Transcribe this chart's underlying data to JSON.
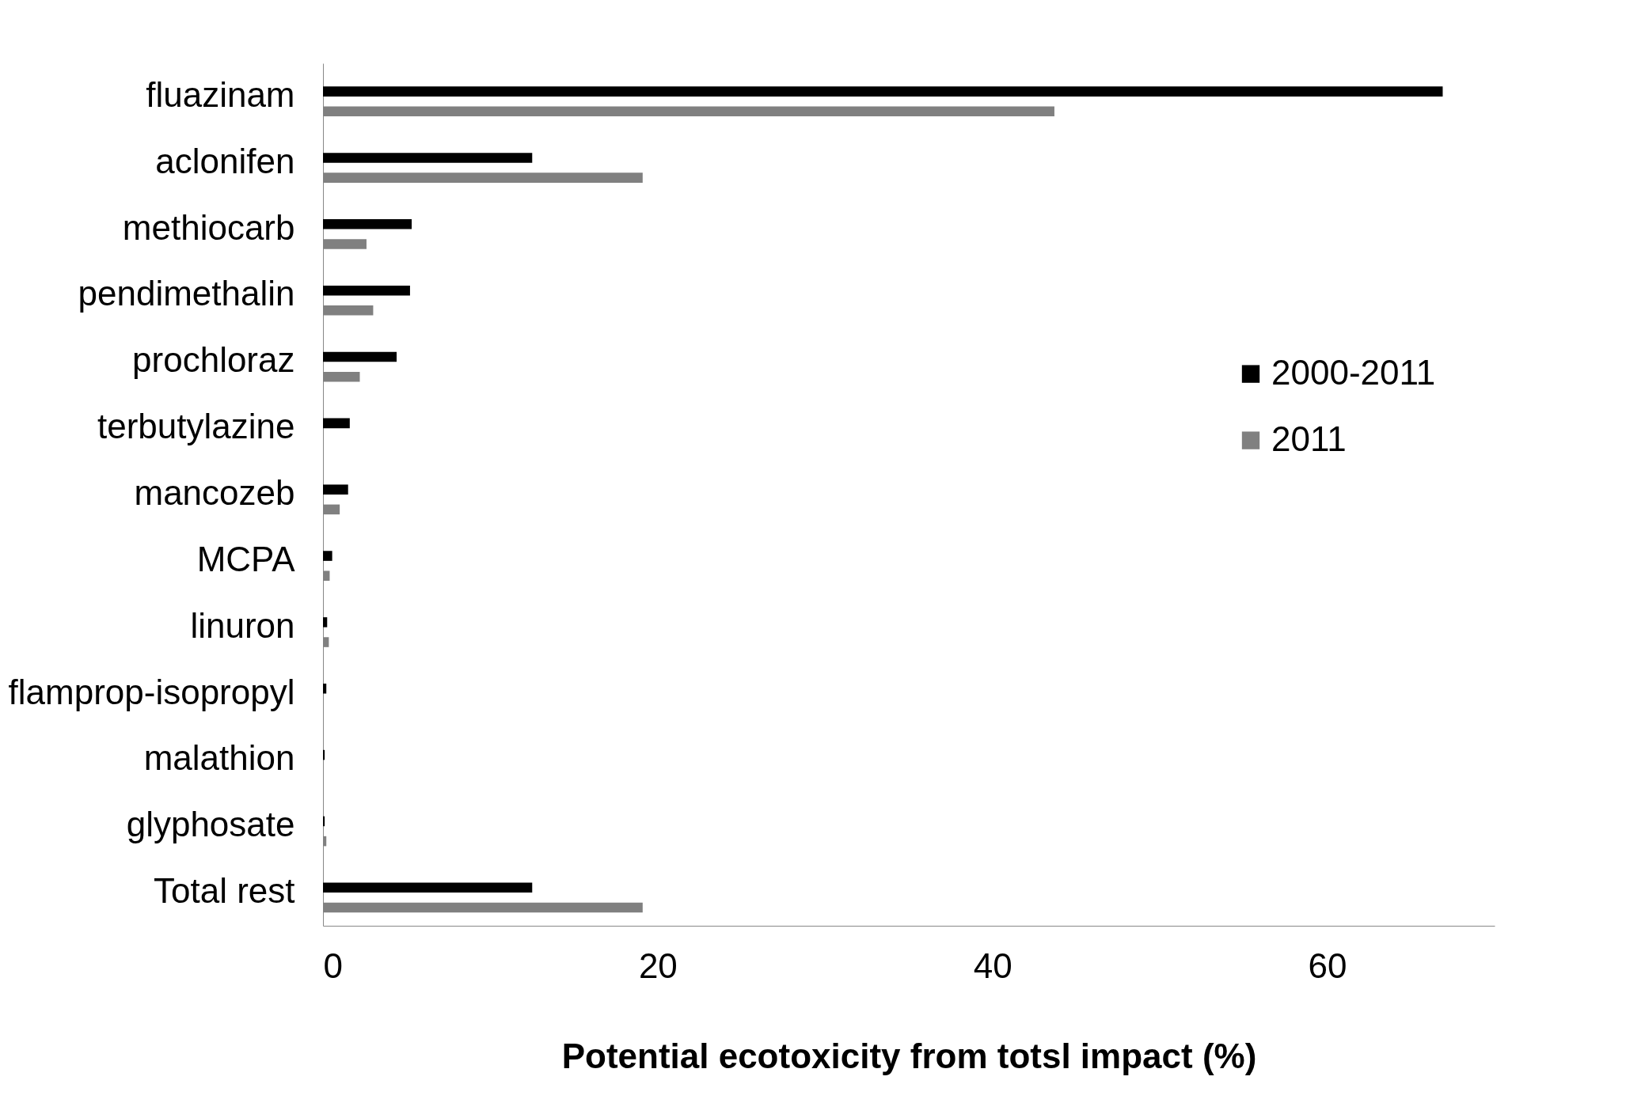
{
  "chart_data": {
    "type": "bar",
    "orientation": "horizontal",
    "xlabel": "Potential ecotoxicity from totsl impact (%)",
    "categories": [
      "fluazinam",
      "aclonifen",
      "methiocarb",
      "pendimethalin",
      "prochloraz",
      "terbutylazine",
      "mancozeb",
      "MCPA",
      "linuron",
      "flamprop-isopropyl",
      "malathion",
      "glyphosate",
      "Total rest"
    ],
    "series": [
      {
        "name": "2000-2011",
        "color": "#000000",
        "values": [
          66.9,
          12.5,
          5.3,
          5.2,
          4.4,
          1.6,
          1.5,
          0.55,
          0.25,
          0.2,
          0.1,
          0.1,
          12.5
        ]
      },
      {
        "name": "2011",
        "color": "#808080",
        "values": [
          43.7,
          19.1,
          2.6,
          3.0,
          2.2,
          0,
          1.0,
          0.4,
          0.35,
          0,
          0,
          0.2,
          19.1
        ]
      }
    ],
    "xlim": [
      0,
      70
    ],
    "xticks": [
      0,
      20,
      40,
      60
    ],
    "grid": false,
    "legend": "right"
  }
}
